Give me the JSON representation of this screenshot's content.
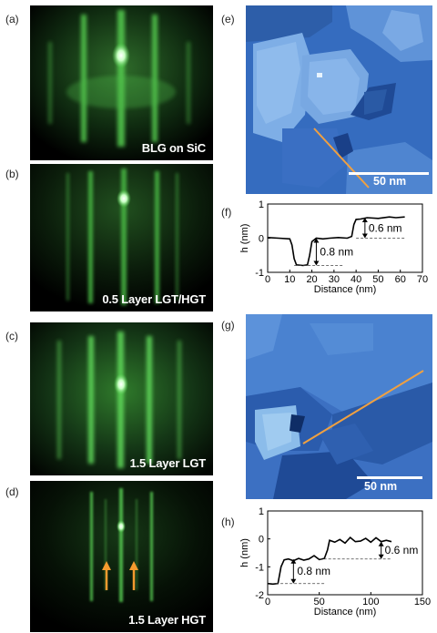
{
  "panels": {
    "a": {
      "label": "(a)",
      "caption": "BLG on SiC"
    },
    "b": {
      "label": "(b)",
      "caption": "0.5 Layer LGT/HGT"
    },
    "c": {
      "label": "(c)",
      "caption": "1.5 Layer LGT"
    },
    "d": {
      "label": "(d)",
      "caption": "1.5 Layer HGT"
    },
    "e": {
      "label": "(e)",
      "scalebar": "50 nm"
    },
    "g": {
      "label": "(g)",
      "scalebar": "50 nm"
    },
    "f": {
      "label": "(f)"
    },
    "h": {
      "label": "(h)"
    }
  },
  "colors": {
    "rheed_green": "#5fd35a",
    "stm_blue": "#2f63b8",
    "line_orange": "#f0a040",
    "arrow_orange": "#f39a2e"
  },
  "chart_data": [
    {
      "id": "f",
      "type": "line",
      "xlabel": "Distance (nm)",
      "ylabel": "h (nm)",
      "xlim": [
        0,
        70
      ],
      "ylim": [
        -1,
        1
      ],
      "xticks": [
        0,
        10,
        20,
        30,
        40,
        50,
        60,
        70
      ],
      "yticks": [
        -1,
        0,
        1
      ],
      "annotations": [
        "0.6 nm",
        "0.8 nm"
      ],
      "series": [
        {
          "x": [
            0,
            5,
            10,
            11,
            12,
            13,
            16,
            18,
            19,
            20,
            22,
            25,
            28,
            32,
            36,
            38,
            39,
            40,
            42,
            45,
            50,
            55,
            58,
            62
          ],
          "y": [
            0.02,
            0.0,
            -0.02,
            -0.2,
            -0.6,
            -0.78,
            -0.8,
            -0.78,
            -0.5,
            -0.1,
            0.0,
            -0.02,
            0.0,
            0.02,
            0.0,
            0.05,
            0.4,
            0.55,
            0.56,
            0.6,
            0.58,
            0.62,
            0.6,
            0.62
          ]
        }
      ]
    },
    {
      "id": "h",
      "type": "line",
      "xlabel": "Distance (nm)",
      "ylabel": "h (nm)",
      "xlim": [
        0,
        150
      ],
      "ylim": [
        -2,
        1
      ],
      "xticks": [
        0,
        50,
        100,
        150
      ],
      "yticks": [
        -2,
        -1,
        0,
        1
      ],
      "annotations": [
        "0.6 nm",
        "0.8 nm"
      ],
      "series": [
        {
          "x": [
            0,
            5,
            10,
            13,
            16,
            20,
            25,
            30,
            35,
            40,
            45,
            50,
            55,
            58,
            60,
            65,
            70,
            75,
            80,
            85,
            90,
            95,
            100,
            105,
            110,
            115,
            120
          ],
          "y": [
            -1.6,
            -1.62,
            -1.6,
            -1.0,
            -0.75,
            -0.72,
            -0.78,
            -0.7,
            -0.76,
            -0.72,
            -0.6,
            -0.74,
            -0.7,
            -0.4,
            -0.05,
            -0.12,
            -0.02,
            -0.15,
            0.05,
            -0.1,
            -0.08,
            0.02,
            -0.12,
            0.04,
            -0.1,
            -0.05,
            -0.1
          ]
        }
      ]
    }
  ]
}
